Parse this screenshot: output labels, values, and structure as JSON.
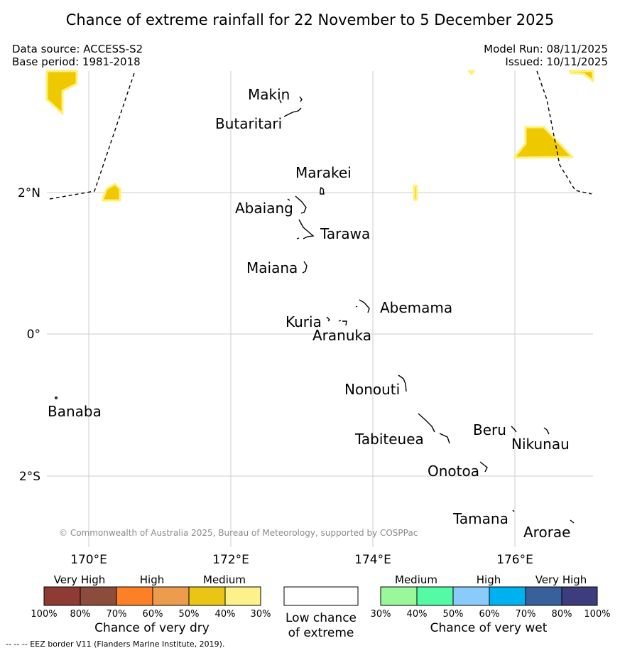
{
  "title": "Chance of extreme rainfall for 22 November to 5 December 2025",
  "meta": {
    "data_source": "Data source: ACCESS-S2",
    "base_period": "Base period: 1981-2018",
    "model_run": "Model Run: 08/11/2025",
    "issued": "Issued: 10/11/2025"
  },
  "map": {
    "lat_ticks": [
      "2°N",
      "0°",
      "2°S"
    ],
    "lon_ticks": [
      "170°E",
      "172°E",
      "174°E",
      "176°E"
    ],
    "places": [
      "Makin",
      "Butaritari",
      "Marakei",
      "Abaiang",
      "Tarawa",
      "Maiana",
      "Abemama",
      "Kuria",
      "Aranuka",
      "Banaba",
      "Nonouti",
      "Tabiteuea",
      "Beru",
      "Nikunau",
      "Onotoa",
      "Tamana",
      "Arorae"
    ],
    "copyright": "© Commonwealth of Australia 2025, Bureau of Meteorology, supported by COSPPac"
  },
  "colorbars": {
    "dry": {
      "headers": [
        "Very High",
        "High",
        "Medium"
      ],
      "colors": [
        "#8e3b34",
        "#8b4c3b",
        "#fd8027",
        "#ec9c4c",
        "#ebc515",
        "#fbf28b"
      ],
      "ticks": [
        "100%",
        "80%",
        "70%",
        "60%",
        "50%",
        "40%",
        "30%"
      ],
      "caption": "Chance of very dry"
    },
    "low": {
      "line1": "Low chance",
      "line2": "of extreme"
    },
    "wet": {
      "headers": [
        "Medium",
        "High",
        "Very High"
      ],
      "colors": [
        "#99f89a",
        "#54fba4",
        "#8acbfc",
        "#00b1f0",
        "#37619a",
        "#3d3c7c"
      ],
      "ticks": [
        "30%",
        "40%",
        "50%",
        "60%",
        "70%",
        "80%",
        "100%"
      ],
      "caption": "Chance of very wet"
    }
  },
  "footer": "-- -- -- EEZ border V11 (Flanders Marine Institute, 2019).",
  "colors": {
    "medium_dry": "#efc900",
    "halo": "#fff07a",
    "grid": "#cccccc"
  }
}
